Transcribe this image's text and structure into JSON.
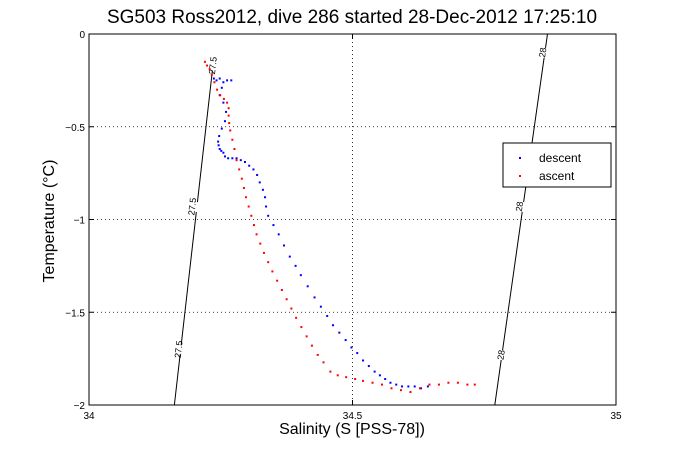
{
  "chart_data": {
    "type": "scatter",
    "title": "SG503 Ross2012, dive 286 started 28-Dec-2012 17:25:10",
    "xlabel": "Salinity (S [PSS-78])",
    "ylabel": "Temperature (°C)",
    "xlim": [
      34,
      35
    ],
    "ylim": [
      -2,
      0
    ],
    "x_ticks": [
      34,
      34.5,
      35
    ],
    "x_tick_labels": [
      "34",
      "34.5",
      "35"
    ],
    "y_ticks": [
      0,
      -0.5,
      -1,
      -1.5,
      -2
    ],
    "y_tick_labels": [
      "0",
      "-0.5",
      "-1",
      "-1.5",
      "-2"
    ],
    "grid": true,
    "legend_position": "right",
    "colors": {
      "descent": "#0000ff",
      "ascent": "#ff0000",
      "contour": "#000000"
    },
    "contours": [
      {
        "value": 27.5,
        "points": [
          [
            34.236,
            -0.15
          ],
          [
            34.162,
            -2.0
          ]
        ],
        "labels": [
          {
            "text": "27.5",
            "x": 34.235,
            "y": -0.17
          },
          {
            "text": "27.5",
            "x": 34.196,
            "y": -0.93
          },
          {
            "text": "27.5",
            "x": 34.17,
            "y": -1.7
          }
        ]
      },
      {
        "value": 28,
        "points": [
          [
            34.87,
            0.0
          ],
          [
            34.77,
            -2.0
          ]
        ],
        "labels": [
          {
            "text": "28",
            "x": 34.861,
            "y": -0.1
          },
          {
            "text": "28",
            "x": 34.817,
            "y": -0.93
          },
          {
            "text": "28",
            "x": 34.782,
            "y": -1.73
          }
        ]
      }
    ],
    "series": [
      {
        "name": "descent",
        "points": [
          [
            34.237,
            -0.24
          ],
          [
            34.242,
            -0.25
          ],
          [
            34.248,
            -0.24
          ],
          [
            34.255,
            -0.26
          ],
          [
            34.262,
            -0.25
          ],
          [
            34.27,
            -0.25
          ],
          [
            34.252,
            -0.29
          ],
          [
            34.248,
            -0.33
          ],
          [
            34.255,
            -0.37
          ],
          [
            34.26,
            -0.42
          ],
          [
            34.258,
            -0.47
          ],
          [
            34.252,
            -0.51
          ],
          [
            34.247,
            -0.55
          ],
          [
            34.245,
            -0.58
          ],
          [
            34.246,
            -0.6
          ],
          [
            34.248,
            -0.62
          ],
          [
            34.251,
            -0.63
          ],
          [
            34.255,
            -0.64
          ],
          [
            34.258,
            -0.66
          ],
          [
            34.264,
            -0.67
          ],
          [
            34.272,
            -0.67
          ],
          [
            34.28,
            -0.67
          ],
          [
            34.288,
            -0.68
          ],
          [
            34.296,
            -0.69
          ],
          [
            34.304,
            -0.71
          ],
          [
            34.312,
            -0.73
          ],
          [
            34.319,
            -0.76
          ],
          [
            34.324,
            -0.8
          ],
          [
            34.33,
            -0.84
          ],
          [
            34.334,
            -0.88
          ],
          [
            34.336,
            -0.93
          ],
          [
            34.34,
            -0.98
          ],
          [
            34.35,
            -1.03
          ],
          [
            34.36,
            -1.08
          ],
          [
            34.37,
            -1.14
          ],
          [
            34.381,
            -1.2
          ],
          [
            34.392,
            -1.25
          ],
          [
            34.402,
            -1.3
          ],
          [
            34.415,
            -1.36
          ],
          [
            34.428,
            -1.42
          ],
          [
            34.44,
            -1.47
          ],
          [
            34.452,
            -1.52
          ],
          [
            34.463,
            -1.57
          ],
          [
            34.475,
            -1.61
          ],
          [
            34.487,
            -1.65
          ],
          [
            34.498,
            -1.69
          ],
          [
            34.509,
            -1.72
          ],
          [
            34.52,
            -1.76
          ],
          [
            34.531,
            -1.79
          ],
          [
            34.542,
            -1.82
          ],
          [
            34.552,
            -1.84
          ],
          [
            34.562,
            -1.86
          ],
          [
            34.572,
            -1.88
          ],
          [
            34.583,
            -1.89
          ],
          [
            34.594,
            -1.9
          ],
          [
            34.606,
            -1.9
          ],
          [
            34.618,
            -1.9
          ],
          [
            34.63,
            -1.91
          ],
          [
            34.643,
            -1.9
          ]
        ]
      },
      {
        "name": "ascent",
        "points": [
          [
            34.22,
            -0.15
          ],
          [
            34.224,
            -0.17
          ],
          [
            34.229,
            -0.19
          ],
          [
            34.233,
            -0.22
          ],
          [
            34.238,
            -0.26
          ],
          [
            34.243,
            -0.3
          ],
          [
            34.249,
            -0.33
          ],
          [
            34.256,
            -0.35
          ],
          [
            34.262,
            -0.37
          ],
          [
            34.265,
            -0.4
          ],
          [
            34.265,
            -0.44
          ],
          [
            34.266,
            -0.48
          ],
          [
            34.268,
            -0.52
          ],
          [
            34.272,
            -0.57
          ],
          [
            34.276,
            -0.62
          ],
          [
            34.28,
            -0.68
          ],
          [
            34.285,
            -0.73
          ],
          [
            34.29,
            -0.78
          ],
          [
            34.294,
            -0.83
          ],
          [
            34.298,
            -0.88
          ],
          [
            34.303,
            -0.93
          ],
          [
            34.308,
            -0.98
          ],
          [
            34.313,
            -1.03
          ],
          [
            34.318,
            -1.08
          ],
          [
            34.325,
            -1.13
          ],
          [
            34.332,
            -1.18
          ],
          [
            34.34,
            -1.23
          ],
          [
            34.348,
            -1.28
          ],
          [
            34.357,
            -1.33
          ],
          [
            34.366,
            -1.38
          ],
          [
            34.375,
            -1.43
          ],
          [
            34.384,
            -1.48
          ],
          [
            34.393,
            -1.53
          ],
          [
            34.403,
            -1.58
          ],
          [
            34.413,
            -1.63
          ],
          [
            34.423,
            -1.68
          ],
          [
            34.434,
            -1.73
          ],
          [
            34.445,
            -1.77
          ],
          [
            34.458,
            -1.82
          ],
          [
            34.472,
            -1.84
          ],
          [
            34.488,
            -1.85
          ],
          [
            34.505,
            -1.86
          ],
          [
            34.52,
            -1.87
          ],
          [
            34.538,
            -1.88
          ],
          [
            34.556,
            -1.89
          ],
          [
            34.574,
            -1.91
          ],
          [
            34.592,
            -1.92
          ],
          [
            34.61,
            -1.93
          ],
          [
            34.628,
            -1.91
          ],
          [
            34.646,
            -1.89
          ],
          [
            34.664,
            -1.89
          ],
          [
            34.682,
            -1.88
          ],
          [
            34.7,
            -1.88
          ],
          [
            34.718,
            -1.89
          ],
          [
            34.732,
            -1.89
          ]
        ]
      }
    ]
  }
}
